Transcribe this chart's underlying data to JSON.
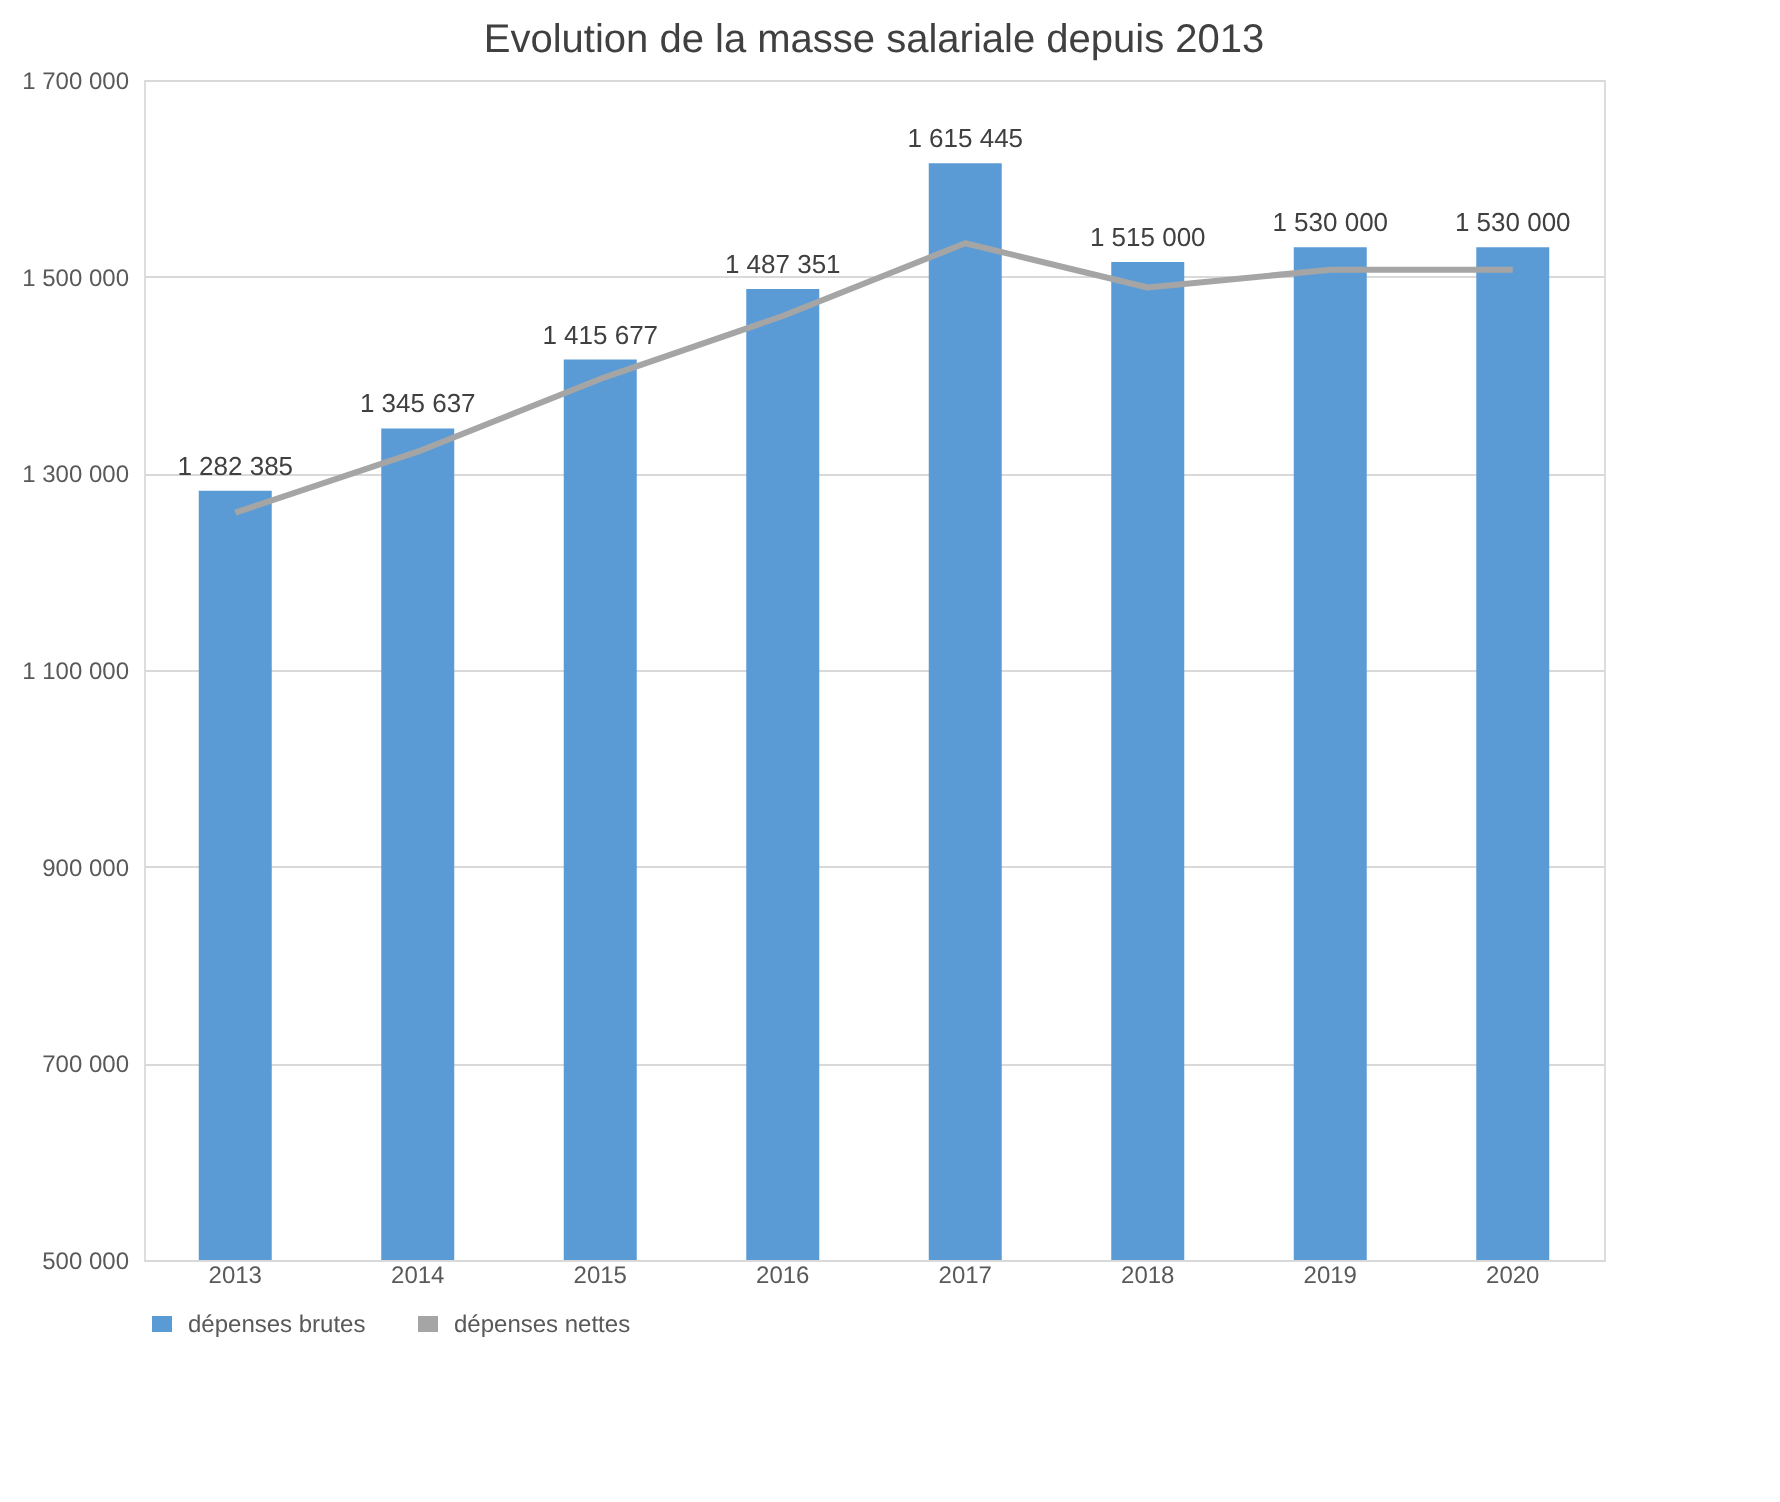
{
  "chart_data": {
    "type": "bar",
    "title": "Evolution de la masse salariale depuis 2013",
    "categories": [
      "2013",
      "2014",
      "2015",
      "2016",
      "2017",
      "2018",
      "2019",
      "2020"
    ],
    "series": [
      {
        "name": "dépenses brutes",
        "color": "#5b9bd5",
        "values": [
          1282385,
          1345637,
          1415677,
          1487351,
          1615445,
          1515000,
          1530000,
          1530000
        ],
        "value_labels": [
          "1 282 385",
          "1 345 637",
          "1 415 677",
          "1 487 351",
          "1 615 445",
          "1 515 000",
          "1 530 000",
          "1 530 000"
        ]
      },
      {
        "name": "dépenses nettes",
        "type": "line",
        "color": "#a5a5a5",
        "values": [
          1260000,
          1322000,
          1396000,
          1460000,
          1534000,
          1489000,
          1507000,
          1507000
        ]
      }
    ],
    "ylim": [
      500000,
      1700000
    ],
    "yticks": [
      {
        "value": 500000,
        "label": "500 000"
      },
      {
        "value": 700000,
        "label": "700 000"
      },
      {
        "value": 900000,
        "label": "900 000"
      },
      {
        "value": 1100000,
        "label": "1 100 000"
      },
      {
        "value": 1300000,
        "label": "1 300 000"
      },
      {
        "value": 1500000,
        "label": "1 500 000"
      },
      {
        "value": 1700000,
        "label": "1 700 000"
      }
    ],
    "grid": "y",
    "legend": "bottom"
  }
}
